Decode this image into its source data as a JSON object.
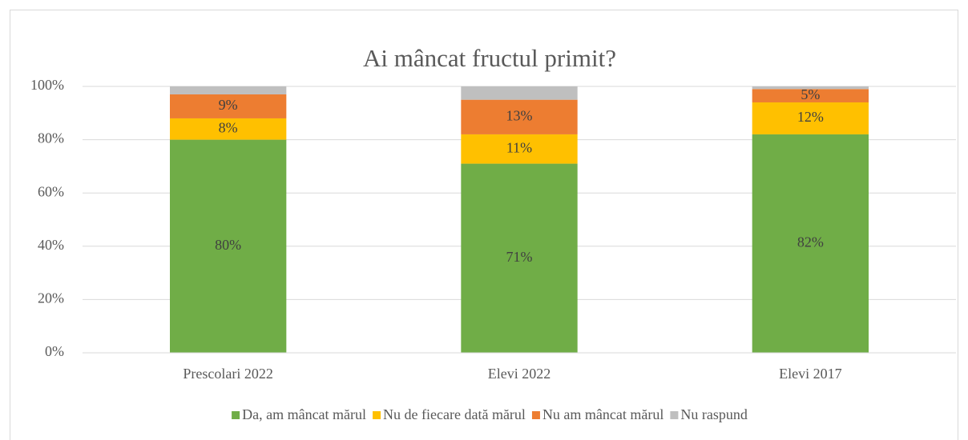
{
  "chart_data": {
    "type": "stacked_bar",
    "title": "Ai mâncat fructul primit?",
    "categories": [
      "Prescolari 2022",
      "Elevi 2022",
      "Elevi 2017"
    ],
    "series": [
      {
        "name": "Da, am mâncat mărul",
        "color": "#70ad47",
        "values": [
          80,
          71,
          82
        ],
        "value_labels": [
          "80%",
          "71%",
          "82%"
        ]
      },
      {
        "name": "Nu de fiecare dată mărul",
        "color": "#ffc000",
        "values": [
          8,
          11,
          12
        ],
        "value_labels": [
          "8%",
          "11%",
          "12%"
        ]
      },
      {
        "name": "Nu am mâncat mărul",
        "color": "#ed7d31",
        "values": [
          9,
          13,
          5
        ],
        "value_labels": [
          "9%",
          "13%",
          "5%"
        ]
      },
      {
        "name": "Nu raspund",
        "color": "#bfbfbf",
        "values": [
          3,
          5,
          1
        ]
      }
    ],
    "ylim": [
      0,
      100
    ],
    "yticks": [
      {
        "value": 0,
        "label": "0%"
      },
      {
        "value": 20,
        "label": "20%"
      },
      {
        "value": 40,
        "label": "40%"
      },
      {
        "value": 60,
        "label": "60%"
      },
      {
        "value": 80,
        "label": "80%"
      },
      {
        "value": 100,
        "label": "100%"
      }
    ],
    "grid": true,
    "legend": "bottom"
  }
}
